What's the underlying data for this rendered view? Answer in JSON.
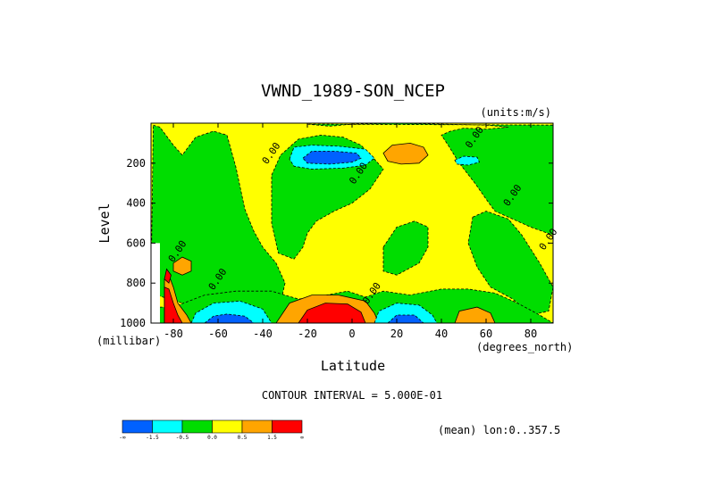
{
  "chart_data": {
    "type": "heatmap",
    "title": "VWND_1989-SON_NCEP",
    "units": "(units:m/s)",
    "xlabel": "Latitude",
    "ylabel": "Level",
    "x_unit": "(degrees_north)",
    "y_unit": "(millibar)",
    "xlim": [
      -90,
      90
    ],
    "ylim": [
      1000,
      0
    ],
    "x_ticks": [
      -80,
      -60,
      -40,
      -20,
      0,
      20,
      40,
      60,
      80
    ],
    "x_tick_labels": [
      "-80",
      "-60",
      "-40",
      "-20",
      "0",
      "20",
      "40",
      "60",
      "80"
    ],
    "y_ticks": [
      200,
      400,
      600,
      800,
      1000
    ],
    "y_tick_labels": [
      "200",
      "400",
      "600",
      "800",
      "1000"
    ],
    "contour_interval_text": "CONTOUR INTERVAL = 5.000E-01",
    "mean_text": "(mean) lon:0..357.5",
    "contour_labels": [
      {
        "text": "0.00",
        "lat": -35,
        "lev": 160
      },
      {
        "text": "0.00",
        "lat": 4,
        "lev": 260
      },
      {
        "text": "0.00",
        "lat": 56,
        "lev": 80
      },
      {
        "text": "0.00",
        "lat": 73,
        "lev": 370
      },
      {
        "text": "0.00",
        "lat": 89,
        "lev": 590
      },
      {
        "text": "0.00",
        "lat": -77,
        "lev": 650
      },
      {
        "text": "0.00",
        "lat": -59,
        "lev": 790
      },
      {
        "text": "0.00",
        "lat": 10,
        "lev": 860
      }
    ],
    "colorbar": {
      "labels": [
        "-∞",
        "-1.5",
        "-0.5",
        "0.0",
        "0.5",
        "1.5",
        "∞"
      ],
      "colors": [
        "#0061ff",
        "#00ffff",
        "#00dd00",
        "#ffff00",
        "#ffa500",
        "#ff0000"
      ]
    },
    "levels": [
      -1.5,
      -0.5,
      0.0,
      0.5,
      1.5
    ],
    "features": [
      {
        "kind": "background",
        "value": 0.2
      },
      {
        "kind": "region",
        "value": -0.3,
        "points": [
          [
            -89,
            10
          ],
          [
            -86,
            20
          ],
          [
            -80,
            110
          ],
          [
            -76,
            160
          ],
          [
            -70,
            70
          ],
          [
            -62,
            40
          ],
          [
            -56,
            60
          ],
          [
            -52,
            220
          ],
          [
            -48,
            430
          ],
          [
            -44,
            540
          ],
          [
            -40,
            620
          ],
          [
            -34,
            700
          ],
          [
            -30,
            800
          ],
          [
            -32,
            900
          ],
          [
            -50,
            930
          ],
          [
            -70,
            920
          ],
          [
            -82,
            880
          ],
          [
            -90,
            850
          ]
        ]
      },
      {
        "kind": "region",
        "value": -0.3,
        "points": [
          [
            -20,
            5
          ],
          [
            -10,
            15
          ],
          [
            0,
            5
          ],
          [
            20,
            0
          ],
          [
            40,
            5
          ],
          [
            60,
            10
          ],
          [
            70,
            20
          ],
          [
            60,
            30
          ],
          [
            50,
            25
          ],
          [
            44,
            40
          ],
          [
            40,
            60
          ],
          [
            43,
            110
          ],
          [
            48,
            200
          ],
          [
            55,
            300
          ],
          [
            60,
            380
          ],
          [
            64,
            440
          ],
          [
            72,
            480
          ],
          [
            80,
            520
          ],
          [
            90,
            560
          ],
          [
            90,
            10
          ]
        ]
      },
      {
        "kind": "region",
        "value": -0.3,
        "points": [
          [
            -36,
            260
          ],
          [
            -32,
            160
          ],
          [
            -24,
            80
          ],
          [
            -14,
            60
          ],
          [
            -4,
            70
          ],
          [
            4,
            110
          ],
          [
            10,
            180
          ],
          [
            14,
            230
          ],
          [
            8,
            330
          ],
          [
            0,
            400
          ],
          [
            -8,
            440
          ],
          [
            -16,
            490
          ],
          [
            -20,
            550
          ],
          [
            -22,
            620
          ],
          [
            -26,
            680
          ],
          [
            -33,
            650
          ],
          [
            -36,
            500
          ]
        ]
      },
      {
        "kind": "region",
        "value": -0.3,
        "points": [
          [
            14,
            620
          ],
          [
            20,
            520
          ],
          [
            28,
            490
          ],
          [
            34,
            520
          ],
          [
            34,
            620
          ],
          [
            30,
            700
          ],
          [
            20,
            760
          ],
          [
            14,
            740
          ]
        ]
      },
      {
        "kind": "region",
        "value": -0.3,
        "points": [
          [
            54,
            470
          ],
          [
            60,
            440
          ],
          [
            70,
            480
          ],
          [
            76,
            560
          ],
          [
            84,
            700
          ],
          [
            90,
            820
          ],
          [
            88,
            940
          ],
          [
            80,
            960
          ],
          [
            72,
            880
          ],
          [
            62,
            820
          ],
          [
            56,
            720
          ],
          [
            52,
            600
          ]
        ]
      },
      {
        "kind": "region",
        "value": -0.3,
        "points": [
          [
            -90,
            920
          ],
          [
            -80,
            920
          ],
          [
            -66,
            860
          ],
          [
            -52,
            840
          ],
          [
            -36,
            840
          ],
          [
            -24,
            880
          ],
          [
            -16,
            870
          ],
          [
            -2,
            840
          ],
          [
            6,
            870
          ],
          [
            14,
            840
          ],
          [
            26,
            860
          ],
          [
            40,
            830
          ],
          [
            52,
            830
          ],
          [
            64,
            850
          ],
          [
            74,
            900
          ],
          [
            84,
            960
          ],
          [
            90,
            1000
          ],
          [
            -90,
            1000
          ]
        ]
      },
      {
        "kind": "region",
        "value": -1.0,
        "points": [
          [
            -28,
            180
          ],
          [
            -26,
            120
          ],
          [
            -18,
            110
          ],
          [
            -6,
            115
          ],
          [
            6,
            130
          ],
          [
            10,
            175
          ],
          [
            6,
            210
          ],
          [
            -4,
            225
          ],
          [
            -18,
            230
          ],
          [
            -26,
            215
          ]
        ]
      },
      {
        "kind": "region",
        "value": -1.8,
        "points": [
          [
            -22,
            175
          ],
          [
            -18,
            140
          ],
          [
            -8,
            140
          ],
          [
            2,
            150
          ],
          [
            4,
            175
          ],
          [
            0,
            195
          ],
          [
            -10,
            205
          ],
          [
            -20,
            200
          ]
        ]
      },
      {
        "kind": "region",
        "value": -1.0,
        "points": [
          [
            46,
            185
          ],
          [
            50,
            165
          ],
          [
            56,
            170
          ],
          [
            57,
            195
          ],
          [
            52,
            210
          ],
          [
            47,
            205
          ]
        ]
      },
      {
        "kind": "region",
        "value": 1.0,
        "points": [
          [
            14,
            150
          ],
          [
            18,
            110
          ],
          [
            26,
            100
          ],
          [
            32,
            120
          ],
          [
            34,
            160
          ],
          [
            30,
            200
          ],
          [
            22,
            205
          ],
          [
            16,
            190
          ]
        ]
      },
      {
        "kind": "region",
        "value": 1.0,
        "points": [
          [
            -80,
            700
          ],
          [
            -76,
            670
          ],
          [
            -72,
            690
          ],
          [
            -72,
            740
          ],
          [
            -76,
            760
          ],
          [
            -80,
            740
          ]
        ]
      },
      {
        "kind": "region",
        "value": -1.0,
        "points": [
          [
            -72,
            1000
          ],
          [
            -70,
            950
          ],
          [
            -62,
            900
          ],
          [
            -50,
            890
          ],
          [
            -40,
            930
          ],
          [
            -36,
            1000
          ]
        ]
      },
      {
        "kind": "region",
        "value": -1.8,
        "points": [
          [
            -66,
            1000
          ],
          [
            -62,
            965
          ],
          [
            -56,
            955
          ],
          [
            -48,
            965
          ],
          [
            -44,
            1000
          ]
        ]
      },
      {
        "kind": "region",
        "value": 1.0,
        "points": [
          [
            -34,
            1000
          ],
          [
            -28,
            900
          ],
          [
            -18,
            860
          ],
          [
            -6,
            860
          ],
          [
            6,
            890
          ],
          [
            10,
            950
          ],
          [
            12,
            1000
          ]
        ]
      },
      {
        "kind": "region",
        "value": 2.0,
        "points": [
          [
            -24,
            1000
          ],
          [
            -20,
            935
          ],
          [
            -12,
            900
          ],
          [
            -2,
            905
          ],
          [
            4,
            945
          ],
          [
            6,
            1000
          ]
        ]
      },
      {
        "kind": "region",
        "value": -1.0,
        "points": [
          [
            10,
            1000
          ],
          [
            12,
            940
          ],
          [
            20,
            900
          ],
          [
            30,
            910
          ],
          [
            36,
            960
          ],
          [
            38,
            1000
          ]
        ]
      },
      {
        "kind": "region",
        "value": -1.8,
        "points": [
          [
            16,
            1000
          ],
          [
            20,
            960
          ],
          [
            28,
            960
          ],
          [
            32,
            1000
          ]
        ]
      },
      {
        "kind": "region",
        "value": 1.0,
        "points": [
          [
            46,
            1000
          ],
          [
            48,
            940
          ],
          [
            56,
            920
          ],
          [
            62,
            950
          ],
          [
            64,
            1000
          ]
        ]
      },
      {
        "kind": "region",
        "value": 1.0,
        "points": [
          [
            -84,
            1000
          ],
          [
            -84,
            780
          ],
          [
            -82,
            760
          ],
          [
            -80,
            820
          ],
          [
            -78,
            900
          ],
          [
            -74,
            960
          ],
          [
            -72,
            1000
          ]
        ]
      },
      {
        "kind": "region",
        "value": 2.0,
        "points": [
          [
            -84,
            1000
          ],
          [
            -84,
            820
          ],
          [
            -82,
            830
          ],
          [
            -80,
            900
          ],
          [
            -78,
            960
          ],
          [
            -76,
            1000
          ]
        ]
      },
      {
        "kind": "region",
        "value": 2.0,
        "points": [
          [
            -84,
            780
          ],
          [
            -83,
            730
          ],
          [
            -81,
            760
          ],
          [
            -82,
            800
          ]
        ]
      },
      {
        "kind": "missing",
        "points": [
          [
            -90,
            1000
          ],
          [
            -90,
            600
          ],
          [
            -86,
            600
          ],
          [
            -86,
            1000
          ]
        ]
      }
    ]
  }
}
